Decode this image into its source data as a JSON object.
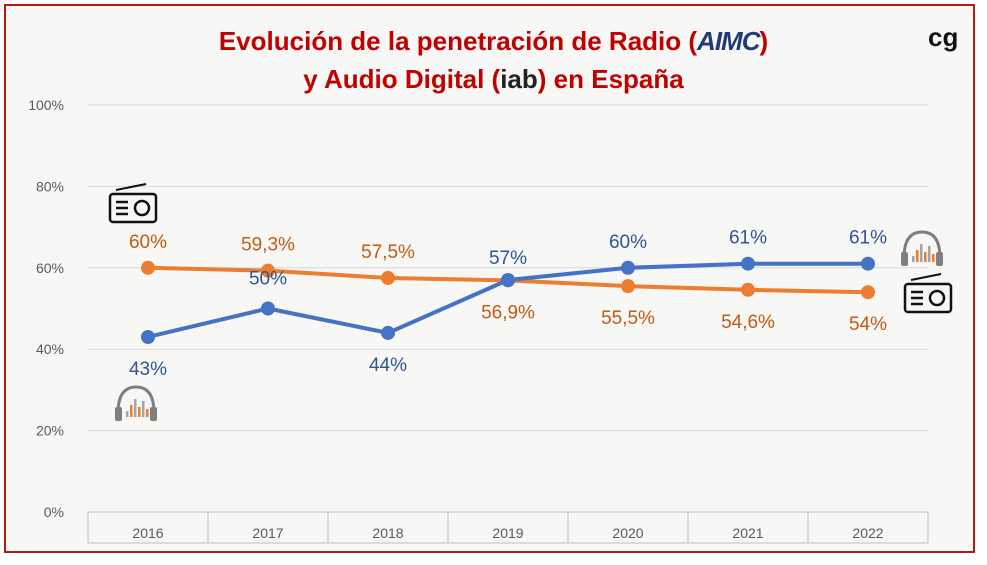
{
  "title_line1": "Evolución de la penetración de Radio (",
  "title_brand1": "AIMC",
  "title_line1_end": ")",
  "title_line2": "y Audio Digital (",
  "title_brand2": "iab",
  "title_line2_end": ") en España",
  "logo_text": "cg",
  "chart_data": {
    "type": "line",
    "categories": [
      "2016",
      "2017",
      "2018",
      "2019",
      "2020",
      "2021",
      "2022"
    ],
    "yticks": [
      "0%",
      "20%",
      "40%",
      "60%",
      "80%",
      "100%"
    ],
    "ylim": [
      0,
      100
    ],
    "grid": true,
    "series": [
      {
        "color": "#ed7d31",
        "values": [
          60,
          59.3,
          57.5,
          56.9,
          55.5,
          54.6,
          54
        ],
        "labels": [
          "60%",
          "59,3%",
          "57,5%",
          "56,9%",
          "55,5%",
          "54,6%",
          "54%"
        ],
        "icon": "radio-icon"
      },
      {
        "color": "#4472c4",
        "values": [
          43,
          50,
          44,
          57,
          60,
          61,
          61
        ],
        "labels": [
          "43%",
          "50%",
          "44%",
          "57%",
          "60%",
          "61%",
          "61%"
        ],
        "icon": "headphones-icon"
      }
    ]
  }
}
